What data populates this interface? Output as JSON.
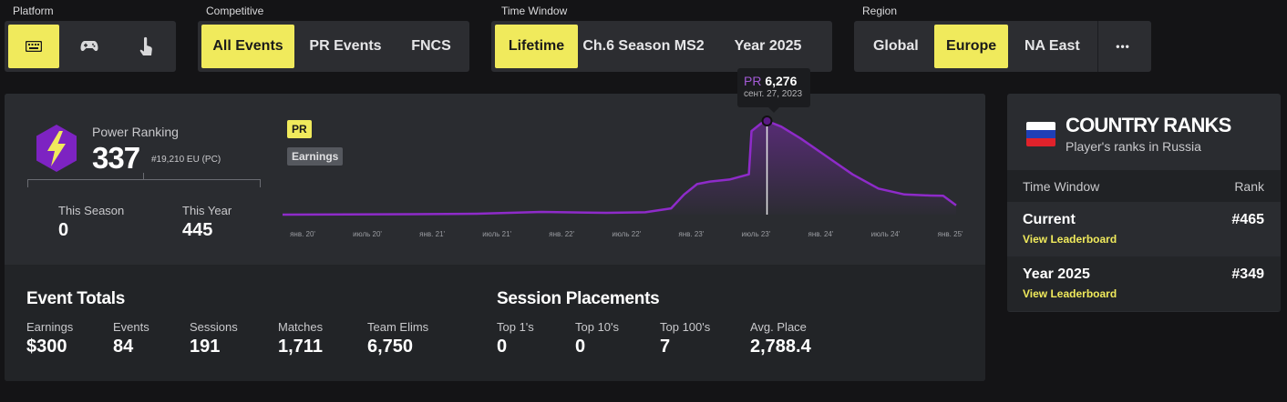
{
  "filters": {
    "platform": {
      "label": "Platform",
      "options": [
        "keyboard-icon",
        "gamepad-icon",
        "touch-icon"
      ],
      "selected": "keyboard-icon"
    },
    "competitive": {
      "label": "Competitive",
      "options": [
        "All Events",
        "PR Events",
        "FNCS"
      ],
      "selected": "All Events"
    },
    "time_window": {
      "label": "Time Window",
      "options": [
        "Lifetime",
        "Ch.6 Season MS2",
        "Year 2025"
      ],
      "selected": "Lifetime"
    },
    "region": {
      "label": "Region",
      "options": [
        "Global",
        "Europe",
        "NA East"
      ],
      "selected": "Europe",
      "more": "•••"
    }
  },
  "power_ranking": {
    "label": "Power Ranking",
    "value": "337",
    "sub": "#19,210 EU (PC)",
    "this_season_label": "This Season",
    "this_season_value": "0",
    "this_year_label": "This Year",
    "this_year_value": "445"
  },
  "chart_chips": {
    "pr": "PR",
    "earnings": "Earnings"
  },
  "tooltip": {
    "prefix": "PR",
    "value": "6,276",
    "date": "сент. 27, 2023"
  },
  "chart_data": {
    "type": "area",
    "x_ticks": [
      "янв. 20'",
      "июль 20'",
      "янв. 21'",
      "июль 21'",
      "янв. 22'",
      "июль 22'",
      "янв. 23'",
      "июль 23'",
      "янв. 24'",
      "июль 24'",
      "янв. 25'"
    ],
    "series": [
      {
        "name": "PR",
        "color": "#8e2bc9",
        "points": [
          [
            2020.0,
            0
          ],
          [
            2020.5,
            10
          ],
          [
            2021.0,
            30
          ],
          [
            2021.5,
            60
          ],
          [
            2022.0,
            180
          ],
          [
            2022.5,
            120
          ],
          [
            2022.8,
            160
          ],
          [
            2023.0,
            420
          ],
          [
            2023.1,
            1350
          ],
          [
            2023.2,
            2050
          ],
          [
            2023.3,
            2220
          ],
          [
            2023.45,
            2350
          ],
          [
            2023.6,
            2700
          ],
          [
            2023.62,
            5600
          ],
          [
            2023.7,
            6150
          ],
          [
            2023.74,
            6276
          ],
          [
            2023.85,
            5900
          ],
          [
            2024.0,
            5100
          ],
          [
            2024.2,
            3900
          ],
          [
            2024.4,
            2700
          ],
          [
            2024.6,
            1750
          ],
          [
            2024.8,
            1350
          ],
          [
            2025.0,
            1280
          ],
          [
            2025.1,
            1260
          ],
          [
            2025.2,
            620
          ]
        ]
      }
    ],
    "highlight": {
      "x": 2023.74,
      "y": 6276
    }
  },
  "event_totals": {
    "title": "Event Totals",
    "items": [
      {
        "label": "Earnings",
        "value": "$300"
      },
      {
        "label": "Events",
        "value": "84"
      },
      {
        "label": "Sessions",
        "value": "191"
      },
      {
        "label": "Matches",
        "value": "1,711"
      },
      {
        "label": "Team Elims",
        "value": "6,750"
      }
    ]
  },
  "session_placements": {
    "title": "Session Placements",
    "items": [
      {
        "label": "Top 1's",
        "value": "0"
      },
      {
        "label": "Top 10's",
        "value": "0"
      },
      {
        "label": "Top 100's",
        "value": "7"
      },
      {
        "label": "Avg. Place",
        "value": "2,788.4"
      }
    ]
  },
  "country_ranks": {
    "title": "COUNTRY RANKS",
    "subtitle": "Player's ranks in Russia",
    "flag_colors": [
      "#ffffff",
      "#1f3fb6",
      "#e0222b"
    ],
    "col_left": "Time Window",
    "col_right": "Rank",
    "rows": [
      {
        "name": "Current",
        "link": "View Leaderboard",
        "rank": "#465"
      },
      {
        "name": "Year 2025",
        "link": "View Leaderboard",
        "rank": "#349"
      }
    ]
  },
  "colors": {
    "accent": "#f0ea5c",
    "purple": "#8e2bc9"
  }
}
